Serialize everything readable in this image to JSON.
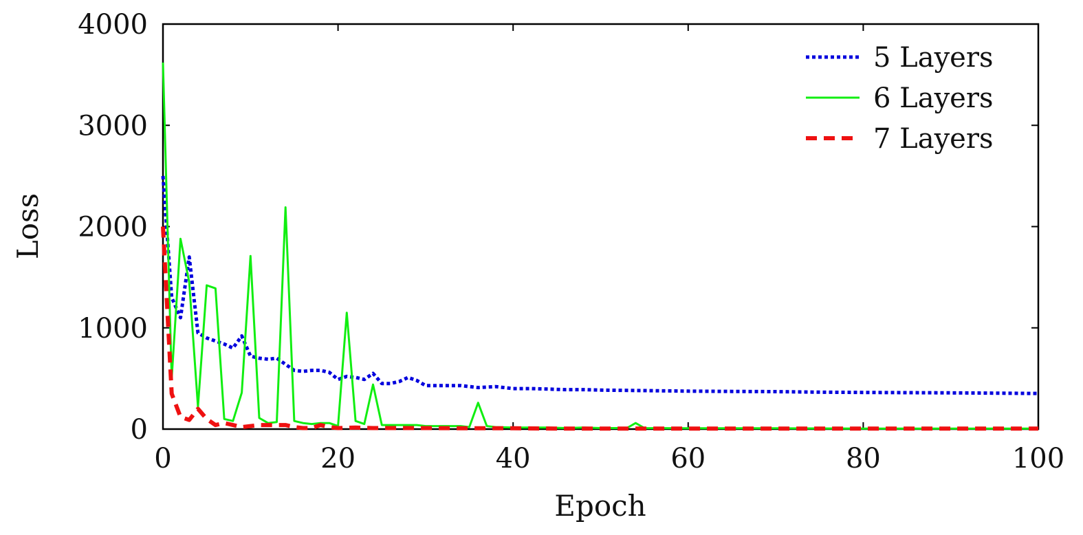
{
  "chart_data": {
    "type": "line",
    "title": "",
    "xlabel": "Epoch",
    "ylabel": "Loss",
    "xlim": [
      0,
      100
    ],
    "ylim": [
      0,
      4000
    ],
    "xticks": [
      0,
      20,
      40,
      60,
      80,
      100
    ],
    "yticks": [
      0,
      1000,
      2000,
      3000,
      4000
    ],
    "legend": "top-right",
    "grid": false,
    "series": [
      {
        "name": "5 Layers",
        "color": "#0000dd",
        "style": "dotted",
        "points": [
          [
            0,
            2500
          ],
          [
            1,
            1300
          ],
          [
            2,
            1100
          ],
          [
            3,
            1700
          ],
          [
            4,
            950
          ],
          [
            5,
            900
          ],
          [
            6,
            870
          ],
          [
            7,
            840
          ],
          [
            8,
            800
          ],
          [
            9,
            920
          ],
          [
            10,
            720
          ],
          [
            11,
            700
          ],
          [
            12,
            690
          ],
          [
            13,
            700
          ],
          [
            14,
            640
          ],
          [
            15,
            580
          ],
          [
            16,
            570
          ],
          [
            17,
            580
          ],
          [
            18,
            580
          ],
          [
            19,
            560
          ],
          [
            20,
            490
          ],
          [
            21,
            520
          ],
          [
            22,
            510
          ],
          [
            23,
            490
          ],
          [
            24,
            550
          ],
          [
            25,
            450
          ],
          [
            26,
            450
          ],
          [
            27,
            470
          ],
          [
            28,
            510
          ],
          [
            29,
            480
          ],
          [
            30,
            430
          ],
          [
            32,
            430
          ],
          [
            34,
            430
          ],
          [
            36,
            410
          ],
          [
            38,
            420
          ],
          [
            40,
            400
          ],
          [
            42,
            400
          ],
          [
            44,
            395
          ],
          [
            46,
            390
          ],
          [
            48,
            390
          ],
          [
            50,
            385
          ],
          [
            55,
            380
          ],
          [
            60,
            375
          ],
          [
            65,
            372
          ],
          [
            70,
            370
          ],
          [
            75,
            365
          ],
          [
            80,
            362
          ],
          [
            85,
            360
          ],
          [
            90,
            358
          ],
          [
            95,
            355
          ],
          [
            100,
            352
          ]
        ]
      },
      {
        "name": "6 Layers",
        "color": "#11ee11",
        "style": "solid",
        "points": [
          [
            0,
            3620
          ],
          [
            1,
            500
          ],
          [
            2,
            1880
          ],
          [
            3,
            1450
          ],
          [
            4,
            220
          ],
          [
            5,
            1420
          ],
          [
            6,
            1390
          ],
          [
            7,
            100
          ],
          [
            8,
            80
          ],
          [
            9,
            360
          ],
          [
            10,
            1710
          ],
          [
            11,
            110
          ],
          [
            12,
            60
          ],
          [
            13,
            70
          ],
          [
            14,
            2190
          ],
          [
            15,
            80
          ],
          [
            16,
            60
          ],
          [
            17,
            50
          ],
          [
            18,
            60
          ],
          [
            19,
            60
          ],
          [
            20,
            30
          ],
          [
            21,
            1150
          ],
          [
            22,
            80
          ],
          [
            23,
            50
          ],
          [
            24,
            440
          ],
          [
            25,
            40
          ],
          [
            26,
            40
          ],
          [
            27,
            40
          ],
          [
            28,
            40
          ],
          [
            29,
            40
          ],
          [
            30,
            30
          ],
          [
            32,
            30
          ],
          [
            34,
            30
          ],
          [
            35,
            20
          ],
          [
            36,
            260
          ],
          [
            37,
            30
          ],
          [
            38,
            20
          ],
          [
            40,
            15
          ],
          [
            42,
            15
          ],
          [
            44,
            15
          ],
          [
            46,
            10
          ],
          [
            48,
            15
          ],
          [
            50,
            10
          ],
          [
            52,
            10
          ],
          [
            53,
            10
          ],
          [
            54,
            60
          ],
          [
            55,
            10
          ],
          [
            60,
            8
          ],
          [
            70,
            8
          ],
          [
            80,
            5
          ],
          [
            90,
            5
          ],
          [
            100,
            5
          ]
        ]
      },
      {
        "name": "7 Layers",
        "color": "#ee1111",
        "style": "dashed",
        "points": [
          [
            0,
            2000
          ],
          [
            1,
            350
          ],
          [
            2,
            120
          ],
          [
            3,
            90
          ],
          [
            4,
            200
          ],
          [
            5,
            100
          ],
          [
            6,
            40
          ],
          [
            7,
            60
          ],
          [
            8,
            40
          ],
          [
            9,
            20
          ],
          [
            10,
            30
          ],
          [
            11,
            40
          ],
          [
            12,
            40
          ],
          [
            13,
            40
          ],
          [
            14,
            40
          ],
          [
            15,
            20
          ],
          [
            16,
            10
          ],
          [
            17,
            10
          ],
          [
            18,
            40
          ],
          [
            19,
            20
          ],
          [
            20,
            10
          ],
          [
            22,
            15
          ],
          [
            24,
            10
          ],
          [
            26,
            10
          ],
          [
            28,
            10
          ],
          [
            30,
            10
          ],
          [
            35,
            8
          ],
          [
            40,
            8
          ],
          [
            45,
            5
          ],
          [
            50,
            5
          ],
          [
            60,
            5
          ],
          [
            70,
            5
          ],
          [
            80,
            5
          ],
          [
            90,
            5
          ],
          [
            100,
            5
          ]
        ]
      }
    ]
  }
}
